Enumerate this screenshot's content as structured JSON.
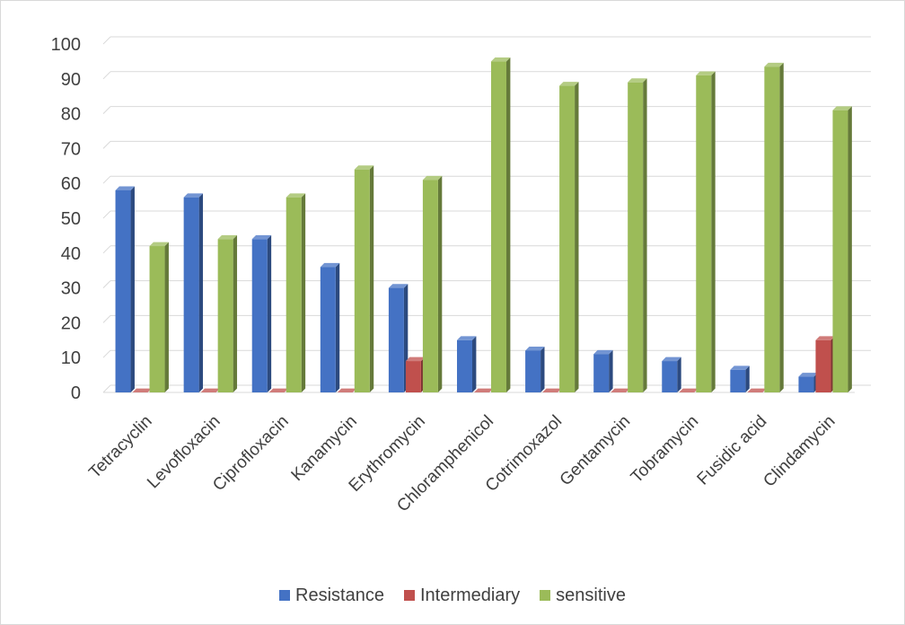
{
  "chart_data": {
    "type": "bar",
    "style": "3d-clustered-column",
    "title": "",
    "xlabel": "",
    "ylabel": "",
    "ylim": [
      0,
      100
    ],
    "yticks": [
      0,
      10,
      20,
      30,
      40,
      50,
      60,
      70,
      80,
      90,
      100
    ],
    "grid": true,
    "legend_position": "bottom",
    "categories": [
      "Tetracyclin",
      "Levofloxacin",
      "Ciprofloxacin",
      "Kanamycin",
      "Erythromycin",
      "Chloramphenicol",
      "Cotrimoxazol",
      "Gentamycin",
      "Tobramycin",
      "Fusidic acid",
      "Clindamycin"
    ],
    "series": [
      {
        "name": "Resistance",
        "color": "#4472c4",
        "values": [
          58,
          56,
          44,
          36,
          30,
          15,
          12,
          11,
          9,
          6.5,
          4.5
        ]
      },
      {
        "name": "Intermediary",
        "color": "#c0504d",
        "values": [
          0,
          0,
          0,
          0,
          9,
          0,
          0,
          0,
          0,
          0,
          15
        ]
      },
      {
        "name": "sensitive",
        "color": "#9bbb59",
        "values": [
          42,
          44,
          56,
          64,
          61,
          95,
          88,
          89,
          91,
          93.5,
          81
        ]
      }
    ]
  }
}
